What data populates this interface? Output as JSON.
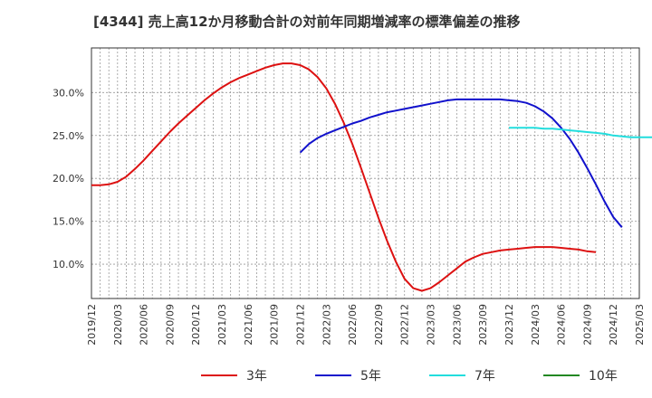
{
  "chart_data": {
    "type": "line",
    "title": "[4344]  売上高12か月移動合計の対前年同期増減率の標準偏差の推移",
    "x_ticks": [
      "2019/12",
      "2020/03",
      "2020/06",
      "2020/09",
      "2020/12",
      "2021/03",
      "2021/06",
      "2021/09",
      "2021/12",
      "2022/03",
      "2022/06",
      "2022/09",
      "2022/12",
      "2023/03",
      "2023/06",
      "2023/09",
      "2023/12",
      "2024/03",
      "2024/06",
      "2024/09",
      "2024/12",
      "2025/03"
    ],
    "y_ticks": [
      "10.0%",
      "15.0%",
      "20.0%",
      "25.0%",
      "30.0%"
    ],
    "ylim": [
      6.0,
      35.2
    ],
    "grid": true,
    "legend_position": "bottom",
    "series": [
      {
        "name": "3年",
        "color": "#dd1111",
        "points": [
          [
            "2019/12",
            19.2
          ],
          [
            "2020/01",
            19.2
          ],
          [
            "2020/02",
            19.3
          ],
          [
            "2020/03",
            19.6
          ],
          [
            "2020/04",
            20.2
          ],
          [
            "2020/05",
            21.1
          ],
          [
            "2020/06",
            22.1
          ],
          [
            "2020/07",
            23.2
          ],
          [
            "2020/08",
            24.3
          ],
          [
            "2020/09",
            25.4
          ],
          [
            "2020/10",
            26.4
          ],
          [
            "2020/11",
            27.3
          ],
          [
            "2020/12",
            28.2
          ],
          [
            "2021/01",
            29.1
          ],
          [
            "2021/02",
            29.9
          ],
          [
            "2021/03",
            30.6
          ],
          [
            "2021/04",
            31.2
          ],
          [
            "2021/05",
            31.7
          ],
          [
            "2021/06",
            32.1
          ],
          [
            "2021/07",
            32.5
          ],
          [
            "2021/08",
            32.9
          ],
          [
            "2021/09",
            33.2
          ],
          [
            "2021/10",
            33.4
          ],
          [
            "2021/11",
            33.4
          ],
          [
            "2021/12",
            33.2
          ],
          [
            "2022/01",
            32.7
          ],
          [
            "2022/02",
            31.8
          ],
          [
            "2022/03",
            30.5
          ],
          [
            "2022/04",
            28.7
          ],
          [
            "2022/05",
            26.5
          ],
          [
            "2022/06",
            24.0
          ],
          [
            "2022/07",
            21.2
          ],
          [
            "2022/08",
            18.3
          ],
          [
            "2022/09",
            15.4
          ],
          [
            "2022/10",
            12.7
          ],
          [
            "2022/11",
            10.3
          ],
          [
            "2022/12",
            8.3
          ],
          [
            "2023/01",
            7.2
          ],
          [
            "2023/02",
            6.9
          ],
          [
            "2023/03",
            7.2
          ],
          [
            "2023/04",
            7.9
          ],
          [
            "2023/05",
            8.7
          ],
          [
            "2023/06",
            9.5
          ],
          [
            "2023/07",
            10.3
          ],
          [
            "2023/08",
            10.8
          ],
          [
            "2023/09",
            11.2
          ],
          [
            "2023/10",
            11.4
          ],
          [
            "2023/11",
            11.6
          ],
          [
            "2023/12",
            11.7
          ],
          [
            "2024/01",
            11.8
          ],
          [
            "2024/02",
            11.9
          ],
          [
            "2024/03",
            12.0
          ],
          [
            "2024/04",
            12.0
          ],
          [
            "2024/05",
            12.0
          ],
          [
            "2024/06",
            11.9
          ],
          [
            "2024/07",
            11.8
          ],
          [
            "2024/08",
            11.7
          ],
          [
            "2024/09",
            11.5
          ],
          [
            "2024/10",
            11.4
          ]
        ]
      },
      {
        "name": "5年",
        "color": "#1111cc",
        "points": [
          [
            "2021/12",
            23.0
          ],
          [
            "2022/01",
            24.0
          ],
          [
            "2022/02",
            24.7
          ],
          [
            "2022/03",
            25.2
          ],
          [
            "2022/04",
            25.6
          ],
          [
            "2022/05",
            26.0
          ],
          [
            "2022/06",
            26.4
          ],
          [
            "2022/07",
            26.7
          ],
          [
            "2022/08",
            27.1
          ],
          [
            "2022/09",
            27.4
          ],
          [
            "2022/10",
            27.7
          ],
          [
            "2022/11",
            27.9
          ],
          [
            "2022/12",
            28.1
          ],
          [
            "2023/01",
            28.3
          ],
          [
            "2023/02",
            28.5
          ],
          [
            "2023/03",
            28.7
          ],
          [
            "2023/04",
            28.9
          ],
          [
            "2023/05",
            29.1
          ],
          [
            "2023/06",
            29.2
          ],
          [
            "2023/07",
            29.2
          ],
          [
            "2023/08",
            29.2
          ],
          [
            "2023/09",
            29.2
          ],
          [
            "2023/10",
            29.2
          ],
          [
            "2023/11",
            29.2
          ],
          [
            "2023/12",
            29.1
          ],
          [
            "2024/01",
            29.0
          ],
          [
            "2024/02",
            28.8
          ],
          [
            "2024/03",
            28.4
          ],
          [
            "2024/04",
            27.8
          ],
          [
            "2024/05",
            27.0
          ],
          [
            "2024/06",
            25.9
          ],
          [
            "2024/07",
            24.6
          ],
          [
            "2024/08",
            23.0
          ],
          [
            "2024/09",
            21.2
          ],
          [
            "2024/10",
            19.3
          ],
          [
            "2024/11",
            17.3
          ],
          [
            "2024/12",
            15.5
          ],
          [
            "2025/01",
            14.3
          ]
        ]
      },
      {
        "name": "7年",
        "color": "#22dddd",
        "points": [
          [
            "2023/12",
            25.9
          ],
          [
            "2024/01",
            25.9
          ],
          [
            "2024/02",
            25.9
          ],
          [
            "2024/03",
            25.9
          ],
          [
            "2024/04",
            25.8
          ],
          [
            "2024/05",
            25.8
          ],
          [
            "2024/06",
            25.7
          ],
          [
            "2024/07",
            25.6
          ],
          [
            "2024/08",
            25.5
          ],
          [
            "2024/09",
            25.4
          ],
          [
            "2024/10",
            25.3
          ],
          [
            "2024/11",
            25.2
          ],
          [
            "2024/12",
            25.0
          ],
          [
            "2025/01",
            24.9
          ],
          [
            "2025/02",
            24.8
          ],
          [
            "2025/03",
            24.8
          ],
          [
            "2025/04",
            24.8
          ],
          [
            "2025/05",
            24.8
          ],
          [
            "2025/06",
            24.8
          ],
          [
            "2025/07",
            24.8
          ]
        ]
      },
      {
        "name": "10年",
        "color": "#228822",
        "points": []
      }
    ]
  }
}
